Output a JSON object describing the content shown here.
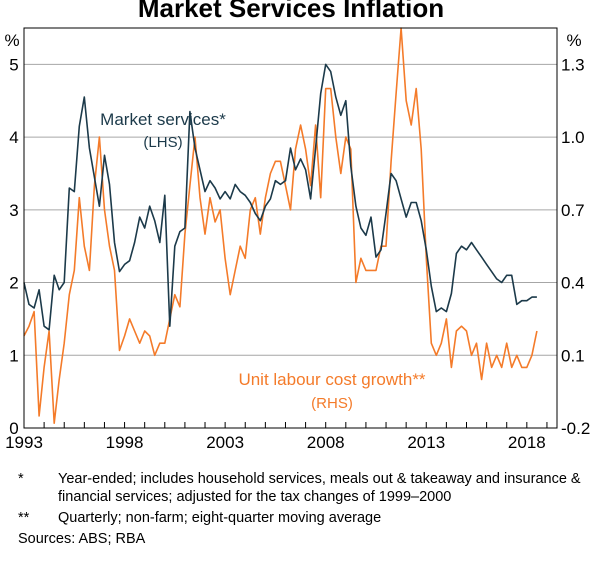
{
  "chart_data": {
    "type": "line",
    "title": "Market Services Inflation",
    "left_axis": {
      "unit": "%",
      "ylim": [
        0,
        5.5
      ],
      "ticks": [
        0,
        1,
        2,
        3,
        4,
        5
      ]
    },
    "right_axis": {
      "unit": "%",
      "ylim": [
        -0.2,
        1.45
      ],
      "ticks": [
        "-0.2",
        "0.1",
        "0.4",
        "0.7",
        "1.0",
        "1.3"
      ],
      "tick_values": [
        -0.2,
        0.1,
        0.4,
        0.7,
        1.0,
        1.3
      ]
    },
    "xlim": [
      1993.0,
      2019.5
    ],
    "x_ticks": [
      1993,
      1998,
      2003,
      2008,
      2013,
      2018
    ],
    "x_tick_labels": [
      "1993",
      "1998",
      "2003",
      "2008",
      "2013",
      "2018"
    ],
    "series": [
      {
        "name": "Market services*",
        "axis_label": "(LHS)",
        "axis": "left",
        "color": "#1c3a4a",
        "x": [
          1993.0,
          1993.25,
          1993.5,
          1993.75,
          1994.0,
          1994.25,
          1994.5,
          1994.75,
          1995.0,
          1995.25,
          1995.5,
          1995.75,
          1996.0,
          1996.25,
          1996.5,
          1996.75,
          1997.0,
          1997.25,
          1997.5,
          1997.75,
          1998.0,
          1998.25,
          1998.5,
          1998.75,
          1999.0,
          1999.25,
          1999.5,
          1999.75,
          2000.0,
          2000.25,
          2000.5,
          2000.75,
          2001.0,
          2001.25,
          2001.5,
          2001.75,
          2002.0,
          2002.25,
          2002.5,
          2002.75,
          2003.0,
          2003.25,
          2003.5,
          2003.75,
          2004.0,
          2004.25,
          2004.5,
          2004.75,
          2005.0,
          2005.25,
          2005.5,
          2005.75,
          2006.0,
          2006.25,
          2006.5,
          2006.75,
          2007.0,
          2007.25,
          2007.5,
          2007.75,
          2008.0,
          2008.25,
          2008.5,
          2008.75,
          2009.0,
          2009.25,
          2009.5,
          2009.75,
          2010.0,
          2010.25,
          2010.5,
          2010.75,
          2011.0,
          2011.25,
          2011.5,
          2011.75,
          2012.0,
          2012.25,
          2012.5,
          2012.75,
          2013.0,
          2013.25,
          2013.5,
          2013.75,
          2014.0,
          2014.25,
          2014.5,
          2014.75,
          2015.0,
          2015.25,
          2015.5,
          2015.75,
          2016.0,
          2016.25,
          2016.5,
          2016.75,
          2017.0,
          2017.25,
          2017.5,
          2017.75,
          2018.0,
          2018.25,
          2018.5
        ],
        "values": [
          2.0,
          1.7,
          1.65,
          1.9,
          1.4,
          1.35,
          2.1,
          1.9,
          2.0,
          3.3,
          3.25,
          4.15,
          4.55,
          3.85,
          3.45,
          3.05,
          3.75,
          3.35,
          2.55,
          2.15,
          2.25,
          2.3,
          2.55,
          2.9,
          2.75,
          3.05,
          2.85,
          2.55,
          3.2,
          1.4,
          2.5,
          2.7,
          2.75,
          4.35,
          3.85,
          3.55,
          3.25,
          3.4,
          3.3,
          3.15,
          3.25,
          3.15,
          3.35,
          3.25,
          3.2,
          3.1,
          2.95,
          2.85,
          3.05,
          3.15,
          3.4,
          3.35,
          3.4,
          3.85,
          3.55,
          3.7,
          3.55,
          3.15,
          3.85,
          4.6,
          5.0,
          4.9,
          4.55,
          4.3,
          4.5,
          3.6,
          3.05,
          2.75,
          2.65,
          2.9,
          2.35,
          2.45,
          2.95,
          3.5,
          3.4,
          3.15,
          2.9,
          3.1,
          3.1,
          2.85,
          2.45,
          1.95,
          1.6,
          1.65,
          1.6,
          1.85,
          2.4,
          2.5,
          2.45,
          2.55,
          2.45,
          2.35,
          2.25,
          2.15,
          2.05,
          2.0,
          2.1,
          2.1,
          1.7,
          1.75,
          1.75,
          1.8,
          1.8
        ]
      },
      {
        "name": "Unit labour cost growth**",
        "axis_label": "(RHS)",
        "axis": "right",
        "color": "#f47b2a",
        "x": [
          1993.0,
          1993.25,
          1993.5,
          1993.75,
          1994.0,
          1994.25,
          1994.5,
          1994.75,
          1995.0,
          1995.25,
          1995.5,
          1995.75,
          1996.0,
          1996.25,
          1996.5,
          1996.75,
          1997.0,
          1997.25,
          1997.5,
          1997.75,
          1998.0,
          1998.25,
          1998.5,
          1998.75,
          1999.0,
          1999.25,
          1999.5,
          1999.75,
          2000.0,
          2000.25,
          2000.5,
          2000.75,
          2001.0,
          2001.25,
          2001.5,
          2001.75,
          2002.0,
          2002.25,
          2002.5,
          2002.75,
          2003.0,
          2003.25,
          2003.5,
          2003.75,
          2004.0,
          2004.25,
          2004.5,
          2004.75,
          2005.0,
          2005.25,
          2005.5,
          2005.75,
          2006.0,
          2006.25,
          2006.5,
          2006.75,
          2007.0,
          2007.25,
          2007.5,
          2007.75,
          2008.0,
          2008.25,
          2008.5,
          2008.75,
          2009.0,
          2009.25,
          2009.5,
          2009.75,
          2010.0,
          2010.25,
          2010.5,
          2010.75,
          2011.0,
          2011.25,
          2011.5,
          2011.75,
          2012.0,
          2012.25,
          2012.5,
          2012.75,
          2013.0,
          2013.25,
          2013.5,
          2013.75,
          2014.0,
          2014.25,
          2014.5,
          2014.75,
          2015.0,
          2015.25,
          2015.5,
          2015.75,
          2016.0,
          2016.25,
          2016.5,
          2016.75,
          2017.0,
          2017.25,
          2017.5,
          2017.75,
          2018.0,
          2018.25,
          2018.5
        ],
        "values": [
          0.18,
          0.22,
          0.28,
          -0.15,
          0.05,
          0.2,
          -0.18,
          0.0,
          0.15,
          0.35,
          0.45,
          0.75,
          0.55,
          0.45,
          0.8,
          1.0,
          0.7,
          0.55,
          0.45,
          0.12,
          0.18,
          0.25,
          0.2,
          0.15,
          0.2,
          0.18,
          0.1,
          0.15,
          0.15,
          0.25,
          0.35,
          0.3,
          0.6,
          0.8,
          1.0,
          0.75,
          0.6,
          0.75,
          0.65,
          0.7,
          0.5,
          0.35,
          0.45,
          0.55,
          0.5,
          0.7,
          0.75,
          0.6,
          0.75,
          0.85,
          0.9,
          0.9,
          0.8,
          0.7,
          0.95,
          1.05,
          0.95,
          0.8,
          1.05,
          0.75,
          1.2,
          1.2,
          1.0,
          0.85,
          1.0,
          0.95,
          0.4,
          0.5,
          0.45,
          0.45,
          0.45,
          0.55,
          0.55,
          0.9,
          1.18,
          1.45,
          1.15,
          1.05,
          1.2,
          0.95,
          0.5,
          0.15,
          0.1,
          0.15,
          0.25,
          0.05,
          0.2,
          0.22,
          0.2,
          0.1,
          0.15,
          0.0,
          0.15,
          0.05,
          0.1,
          0.05,
          0.15,
          0.05,
          0.1,
          0.05,
          0.05,
          0.1,
          0.2
        ]
      }
    ],
    "gridlines": true
  },
  "annotations": {
    "left_label_main": "Market services*",
    "left_label_sub": "(LHS)",
    "right_label_main": "Unit labour cost growth**",
    "right_label_sub": "(RHS)"
  },
  "footnotes": [
    {
      "mark": "*",
      "text": "Year-ended; includes household services, meals out & takeaway and insurance & financial services; adjusted for the tax changes of 1999–2000"
    },
    {
      "mark": "**",
      "text": "Quarterly; non-farm; eight-quarter moving average"
    }
  ],
  "sources": "Sources: ABS; RBA"
}
